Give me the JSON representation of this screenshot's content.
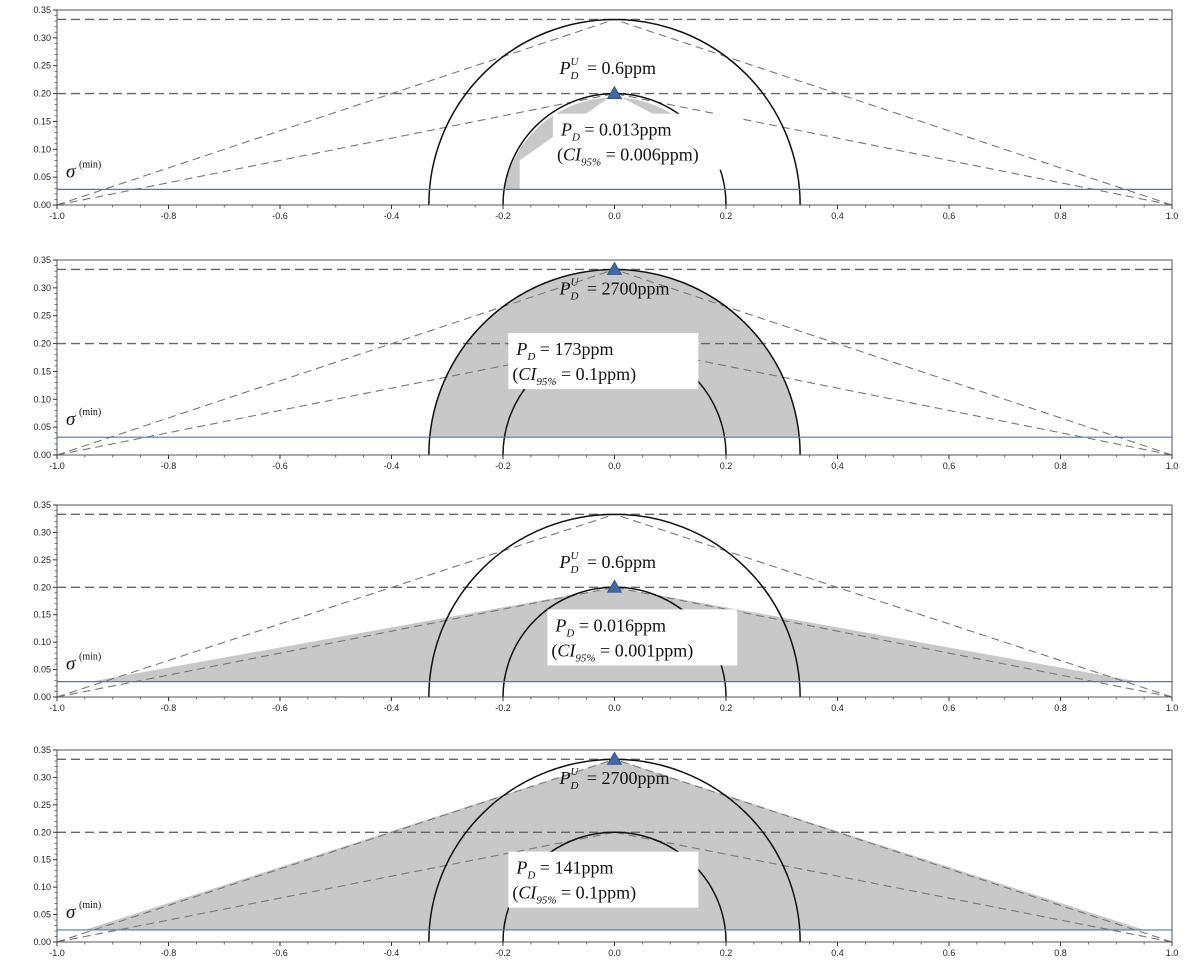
{
  "chart_data": [
    {
      "type": "line",
      "xlim": [
        -1.0,
        1.0
      ],
      "ylim": [
        0.0,
        0.35
      ],
      "x_ticks": [
        "-1.0",
        "-0.8",
        "-0.6",
        "-0.4",
        "-0.2",
        "0.0",
        "0.2",
        "0.4",
        "0.6",
        "0.8",
        "1.0"
      ],
      "y_ticks": [
        "0.00",
        "0.05",
        "0.10",
        "0.15",
        "0.20",
        "0.25",
        "0.30",
        "0.35"
      ],
      "grid": false,
      "dashed_levels": [
        0.333,
        0.2
      ],
      "circle_radii": [
        0.333,
        0.2
      ],
      "sigma_min": 0.028,
      "sigma_label": "σ",
      "sigma_sup": "(min)",
      "marker": {
        "x": 0.0,
        "y": 0.2,
        "color": "#3d6aa8"
      },
      "shade": "inner",
      "pdu_label": {
        "x": 0.0,
        "y": 0.235,
        "value": "= 0.6ppm"
      },
      "pd_box": {
        "x": 0.06,
        "y": 0.11,
        "pd_value": "= 0.013ppm",
        "ci_value": " = 0.006ppm)"
      }
    },
    {
      "type": "line",
      "xlim": [
        -1.0,
        1.0
      ],
      "ylim": [
        0.0,
        0.35
      ],
      "x_ticks": [
        "-1.0",
        "-0.8",
        "-0.6",
        "-0.4",
        "-0.2",
        "0.0",
        "0.2",
        "0.4",
        "0.6",
        "0.8",
        "1.0"
      ],
      "y_ticks": [
        "0.00",
        "0.05",
        "0.10",
        "0.15",
        "0.20",
        "0.25",
        "0.30",
        "0.35"
      ],
      "grid": false,
      "dashed_levels": [
        0.333,
        0.2
      ],
      "circle_radii": [
        0.333,
        0.2
      ],
      "sigma_min": 0.032,
      "sigma_label": "σ",
      "sigma_sup": "(min)",
      "marker": {
        "x": 0.0,
        "y": 0.333,
        "color": "#3d6aa8"
      },
      "shade": "outer",
      "pdu_label": {
        "x": 0.0,
        "y": 0.288,
        "value": "= 2700ppm"
      },
      "pd_box": {
        "x": -0.02,
        "y": 0.165,
        "pd_value": "= 173ppm",
        "ci_value": " = 0.1ppm)"
      }
    },
    {
      "type": "line",
      "xlim": [
        -1.0,
        1.0
      ],
      "ylim": [
        0.0,
        0.35
      ],
      "x_ticks": [
        "-1.0",
        "-0.8",
        "-0.6",
        "-0.4",
        "-0.2",
        "0.0",
        "0.2",
        "0.4",
        "0.6",
        "0.8",
        "1.0"
      ],
      "y_ticks": [
        "0.00",
        "0.05",
        "0.10",
        "0.15",
        "0.20",
        "0.25",
        "0.30",
        "0.35"
      ],
      "grid": false,
      "dashed_levels": [
        0.333,
        0.2
      ],
      "circle_radii": [
        0.333,
        0.2
      ],
      "sigma_min": 0.028,
      "sigma_label": "σ",
      "sigma_sup": "(min)",
      "marker": {
        "x": 0.0,
        "y": 0.2,
        "color": "#3d6aa8"
      },
      "shade": "triangle_low",
      "pdu_label": {
        "x": 0.0,
        "y": 0.235,
        "value": "= 0.6ppm"
      },
      "pd_box": {
        "x": 0.05,
        "y": 0.105,
        "pd_value": "= 0.016ppm",
        "ci_value": " = 0.001ppm)"
      }
    },
    {
      "type": "line",
      "xlim": [
        -1.0,
        1.0
      ],
      "ylim": [
        0.0,
        0.35
      ],
      "x_ticks": [
        "-1.0",
        "-0.8",
        "-0.6",
        "-0.4",
        "-0.2",
        "0.0",
        "0.2",
        "0.4",
        "0.6",
        "0.8",
        "1.0"
      ],
      "y_ticks": [
        "0.00",
        "0.05",
        "0.10",
        "0.15",
        "0.20",
        "0.25",
        "0.30",
        "0.35"
      ],
      "grid": false,
      "dashed_levels": [
        0.333,
        0.2
      ],
      "circle_radii": [
        0.333,
        0.2
      ],
      "sigma_min": 0.022,
      "sigma_label": "σ",
      "sigma_sup": "(min)",
      "marker": {
        "x": 0.0,
        "y": 0.333,
        "color": "#3d6aa8"
      },
      "shade": "triangle_high",
      "pdu_label": {
        "x": 0.0,
        "y": 0.288,
        "value": "= 2700ppm"
      },
      "pd_box": {
        "x": -0.02,
        "y": 0.11,
        "pd_value": "= 141ppm",
        "ci_value": " = 0.1ppm)"
      }
    }
  ]
}
